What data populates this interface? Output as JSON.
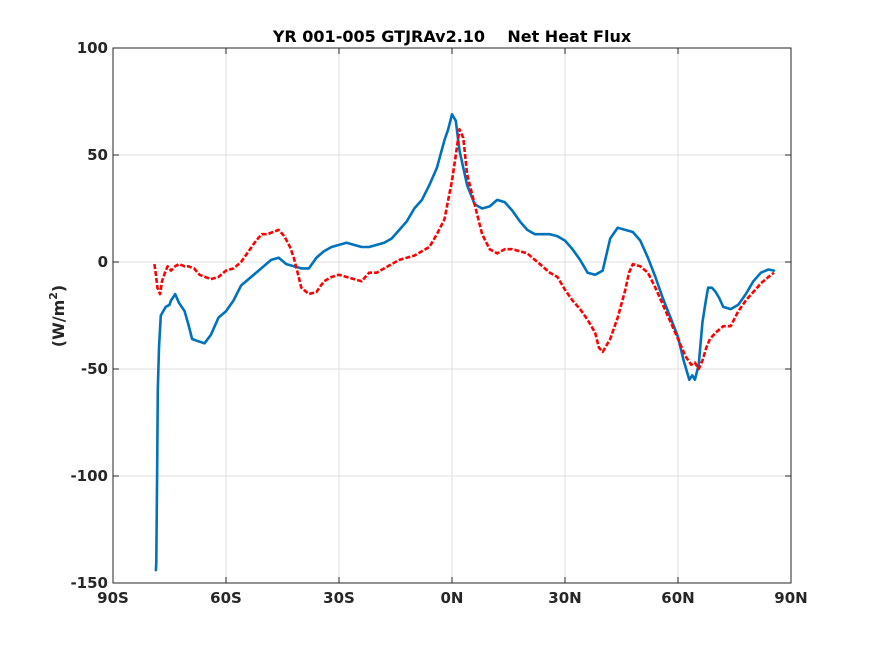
{
  "chart_data": {
    "type": "line",
    "title": "YR 001-005 GTJRAv2.10    Net Heat Flux",
    "xlabel": "",
    "ylabel": "(W/m^2)",
    "ylabel_base": "(W/m",
    "ylabel_sup": "2",
    "ylabel_close": ")",
    "xlim": [
      -90,
      90
    ],
    "ylim": [
      -150,
      100
    ],
    "grid": true,
    "x_ticks": [
      -90,
      -60,
      -30,
      0,
      30,
      60,
      90
    ],
    "x_tick_labels": [
      "90S",
      "60S",
      "30S",
      "0N",
      "30N",
      "60N",
      "90N"
    ],
    "y_ticks": [
      100,
      50,
      0,
      -50,
      -100,
      -150
    ],
    "y_tick_labels": [
      "100",
      "50",
      "0",
      "-50",
      "-100",
      "-150"
    ],
    "series": [
      {
        "color": "#0072BD",
        "style": "solid",
        "x": [
          -78.6,
          -78.5,
          -78.3,
          -78.1,
          -77.8,
          -77.3,
          -76,
          -75,
          -74.6,
          -73.5,
          -72.5,
          -71,
          -70,
          -69,
          -67.4,
          -65.7,
          -64,
          -62,
          -60,
          -58,
          -56,
          -54,
          -52,
          -50,
          -48,
          -46,
          -44,
          -42,
          -40,
          -38,
          -36,
          -34,
          -32,
          -30,
          -28,
          -26,
          -24,
          -22,
          -20,
          -18,
          -16,
          -14,
          -12,
          -10,
          -8,
          -6,
          -4,
          -2,
          -1,
          0,
          1,
          2,
          4,
          6,
          8,
          10,
          12,
          14,
          16,
          18,
          20,
          22,
          24,
          26,
          28,
          30,
          32,
          34,
          36,
          38,
          40,
          42,
          44,
          46,
          48,
          50,
          52,
          54,
          56,
          58,
          60,
          61.5,
          63,
          63.8,
          64.5,
          65.5,
          66.5,
          67.3,
          68,
          69,
          70,
          71,
          72,
          74,
          76,
          78,
          80,
          82,
          84,
          85.5
        ],
        "y": [
          -144,
          -140,
          -100,
          -60,
          -40,
          -25,
          -21,
          -20,
          -18,
          -15,
          -19,
          -23,
          -29,
          -36,
          -37,
          -38,
          -34,
          -26,
          -23,
          -18,
          -11,
          -8,
          -5,
          -2,
          1,
          2,
          -1,
          -2,
          -3,
          -3,
          2,
          5,
          7,
          8,
          9,
          8,
          7,
          7,
          8,
          9,
          11,
          15,
          19,
          25,
          29,
          36,
          44,
          57,
          62,
          69,
          66,
          52,
          36,
          27,
          25,
          26,
          29,
          28,
          24,
          19,
          15,
          13,
          13,
          13,
          12,
          10,
          6,
          1,
          -5,
          -6,
          -4,
          11,
          16,
          15,
          14,
          10,
          2,
          -7,
          -17,
          -26,
          -35,
          -46,
          -55,
          -53,
          -55,
          -48,
          -28,
          -19,
          -12,
          -12,
          -14,
          -17,
          -21,
          -22,
          -20,
          -15,
          -9,
          -5,
          -3.5,
          -4
        ]
      },
      {
        "color": "#FF0000",
        "style": "dashed",
        "x": [
          -79,
          -78.6,
          -78.2,
          -77.5,
          -77,
          -76.2,
          -75.5,
          -74.6,
          -73.5,
          -72.5,
          -71,
          -70,
          -68.5,
          -67,
          -65.5,
          -64,
          -62,
          -60,
          -58,
          -56,
          -54,
          -52,
          -50.5,
          -49,
          -47.5,
          -46,
          -44.5,
          -43,
          -42,
          -41,
          -40,
          -38,
          -36,
          -34,
          -32,
          -30,
          -28,
          -26,
          -24,
          -22,
          -20,
          -18,
          -16,
          -14,
          -12,
          -10,
          -8,
          -6,
          -4,
          -2,
          -1,
          0,
          1,
          2,
          3,
          4,
          6,
          8,
          10,
          12,
          14,
          16,
          18,
          20,
          22,
          24,
          26,
          28,
          30,
          32,
          34,
          36,
          38,
          39,
          40,
          42,
          44,
          46,
          47,
          48,
          50,
          52,
          54,
          56,
          58,
          60,
          62,
          63.5,
          64.5,
          65.5,
          66.5,
          67.5,
          68.5,
          70,
          72,
          74,
          76,
          78,
          80,
          82,
          84,
          85.5
        ],
        "y": [
          -1,
          -6,
          -12,
          -15,
          -9,
          -5,
          -2,
          -4,
          -2,
          -1,
          -2,
          -2,
          -3,
          -6,
          -7,
          -8,
          -7,
          -4,
          -3,
          0,
          5,
          10,
          13,
          13,
          14,
          15,
          12,
          7,
          2,
          -5,
          -12,
          -15,
          -14,
          -9,
          -7,
          -6,
          -7,
          -8,
          -9,
          -5,
          -5,
          -3,
          -1,
          1,
          2,
          3,
          5,
          7,
          13,
          20,
          29,
          38,
          50,
          62,
          58,
          41,
          27,
          13,
          6,
          4,
          6,
          6,
          5,
          4,
          1,
          -2,
          -5,
          -7,
          -13,
          -18,
          -22,
          -27,
          -33,
          -40,
          -42,
          -36,
          -26,
          -13,
          -5,
          -1,
          -2,
          -5,
          -12,
          -20,
          -28,
          -36,
          -44,
          -48,
          -47,
          -50,
          -46,
          -40,
          -36,
          -33,
          -30,
          -30,
          -23,
          -18,
          -14,
          -10,
          -7,
          -5
        ]
      }
    ]
  }
}
